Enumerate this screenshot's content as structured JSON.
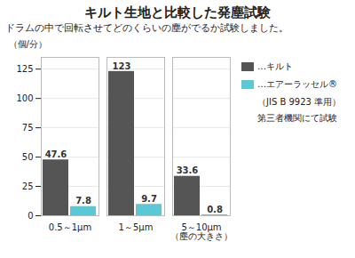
{
  "chart_data": {
    "type": "bar",
    "title": "キルト生地と比較した発塵試験",
    "subtitle": "ドラムの中で回転させてどのくらいの塵がでるか試験しました。",
    "ylabel": "（個/分）",
    "categories": [
      "0.5～1μm",
      "1～5μm",
      "5～10μm（塵の大きさ）"
    ],
    "series": [
      {
        "name": "…キルト",
        "color": "#555555",
        "values": [
          47.6,
          123,
          33.6
        ]
      },
      {
        "name": "…エアーラッセル®",
        "color": "#5bc8d5",
        "values": [
          7.8,
          9.7,
          0.8
        ]
      }
    ],
    "annotations": [
      "（JIS B 9923 準用）",
      "第三者機関にて試験"
    ],
    "ylim": [
      0,
      135
    ],
    "yticks": [
      0,
      25,
      50,
      75,
      100,
      125
    ],
    "grid": true,
    "legend": "right",
    "data_labels": true
  }
}
